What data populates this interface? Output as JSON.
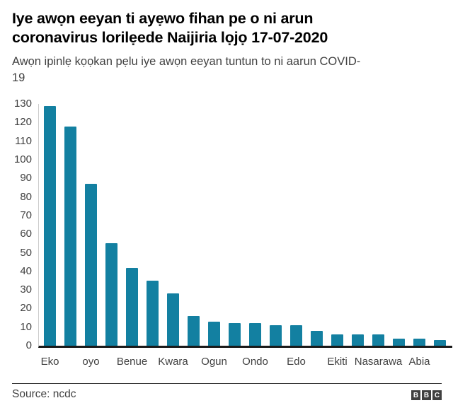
{
  "header": {
    "title": "Iye awọn eeyan ti ayẹwo fihan pe o ni arun coronavirus lorilẹede Naijiria lọjọ 17-07-2020",
    "title_lines": [
      "Iye awọn eeyan ti ayẹwo fihan pe o ni arun",
      "coronavirus lorilẹede Naijiria lọjọ 17-07-2020"
    ],
    "subtitle": "Awọn ipinlẹ kọọkan pẹlu iye awọn eeyan tuntun to ni aarun COVID-19",
    "subtitle_lines": [
      "Awọn ipinlẹ kọọkan pẹlu iye awọn eeyan tuntun to ni aarun COVID-",
      "19"
    ]
  },
  "chart_data": {
    "type": "bar",
    "title": "Iye awọn eeyan ti ayẹwo fihan pe o ni arun coronavirus lorilẹede Naijiria lọjọ 17-07-2020",
    "subtitle": "Awọn ipinlẹ kọọkan pẹlu iye awọn eeyan tuntun to ni aarun COVID-19",
    "categories": [
      "Eko",
      "",
      "oyo",
      "",
      "Benue",
      "",
      "Kwara",
      "",
      "Ogun",
      "",
      "Ondo",
      "",
      "Edo",
      "",
      "Ekiti",
      "",
      "Nasarawa",
      "",
      "Abia",
      ""
    ],
    "values": [
      129,
      118,
      87,
      55,
      42,
      35,
      28,
      16,
      13,
      12,
      12,
      11,
      11,
      8,
      6,
      6,
      6,
      4,
      4,
      3
    ],
    "xlabel": "",
    "ylabel": "",
    "ylim": [
      0,
      130
    ],
    "yticks": [
      0,
      10,
      20,
      30,
      40,
      50,
      60,
      70,
      80,
      90,
      100,
      110,
      120,
      130
    ],
    "grid": false,
    "legend": false,
    "bar_color": "#1380a1"
  },
  "footer": {
    "source": "Source: ncdc",
    "logo_letters": [
      "B",
      "B",
      "C"
    ]
  },
  "colors": {
    "bar": "#1380a1",
    "title_text": "#000000",
    "axis_text": "#404040",
    "axis_line": "#cbcbcb",
    "baseline": "#1a1a1a",
    "divider": "#2e2e2e",
    "logo_background": "#404040",
    "background": "#ffffff"
  }
}
